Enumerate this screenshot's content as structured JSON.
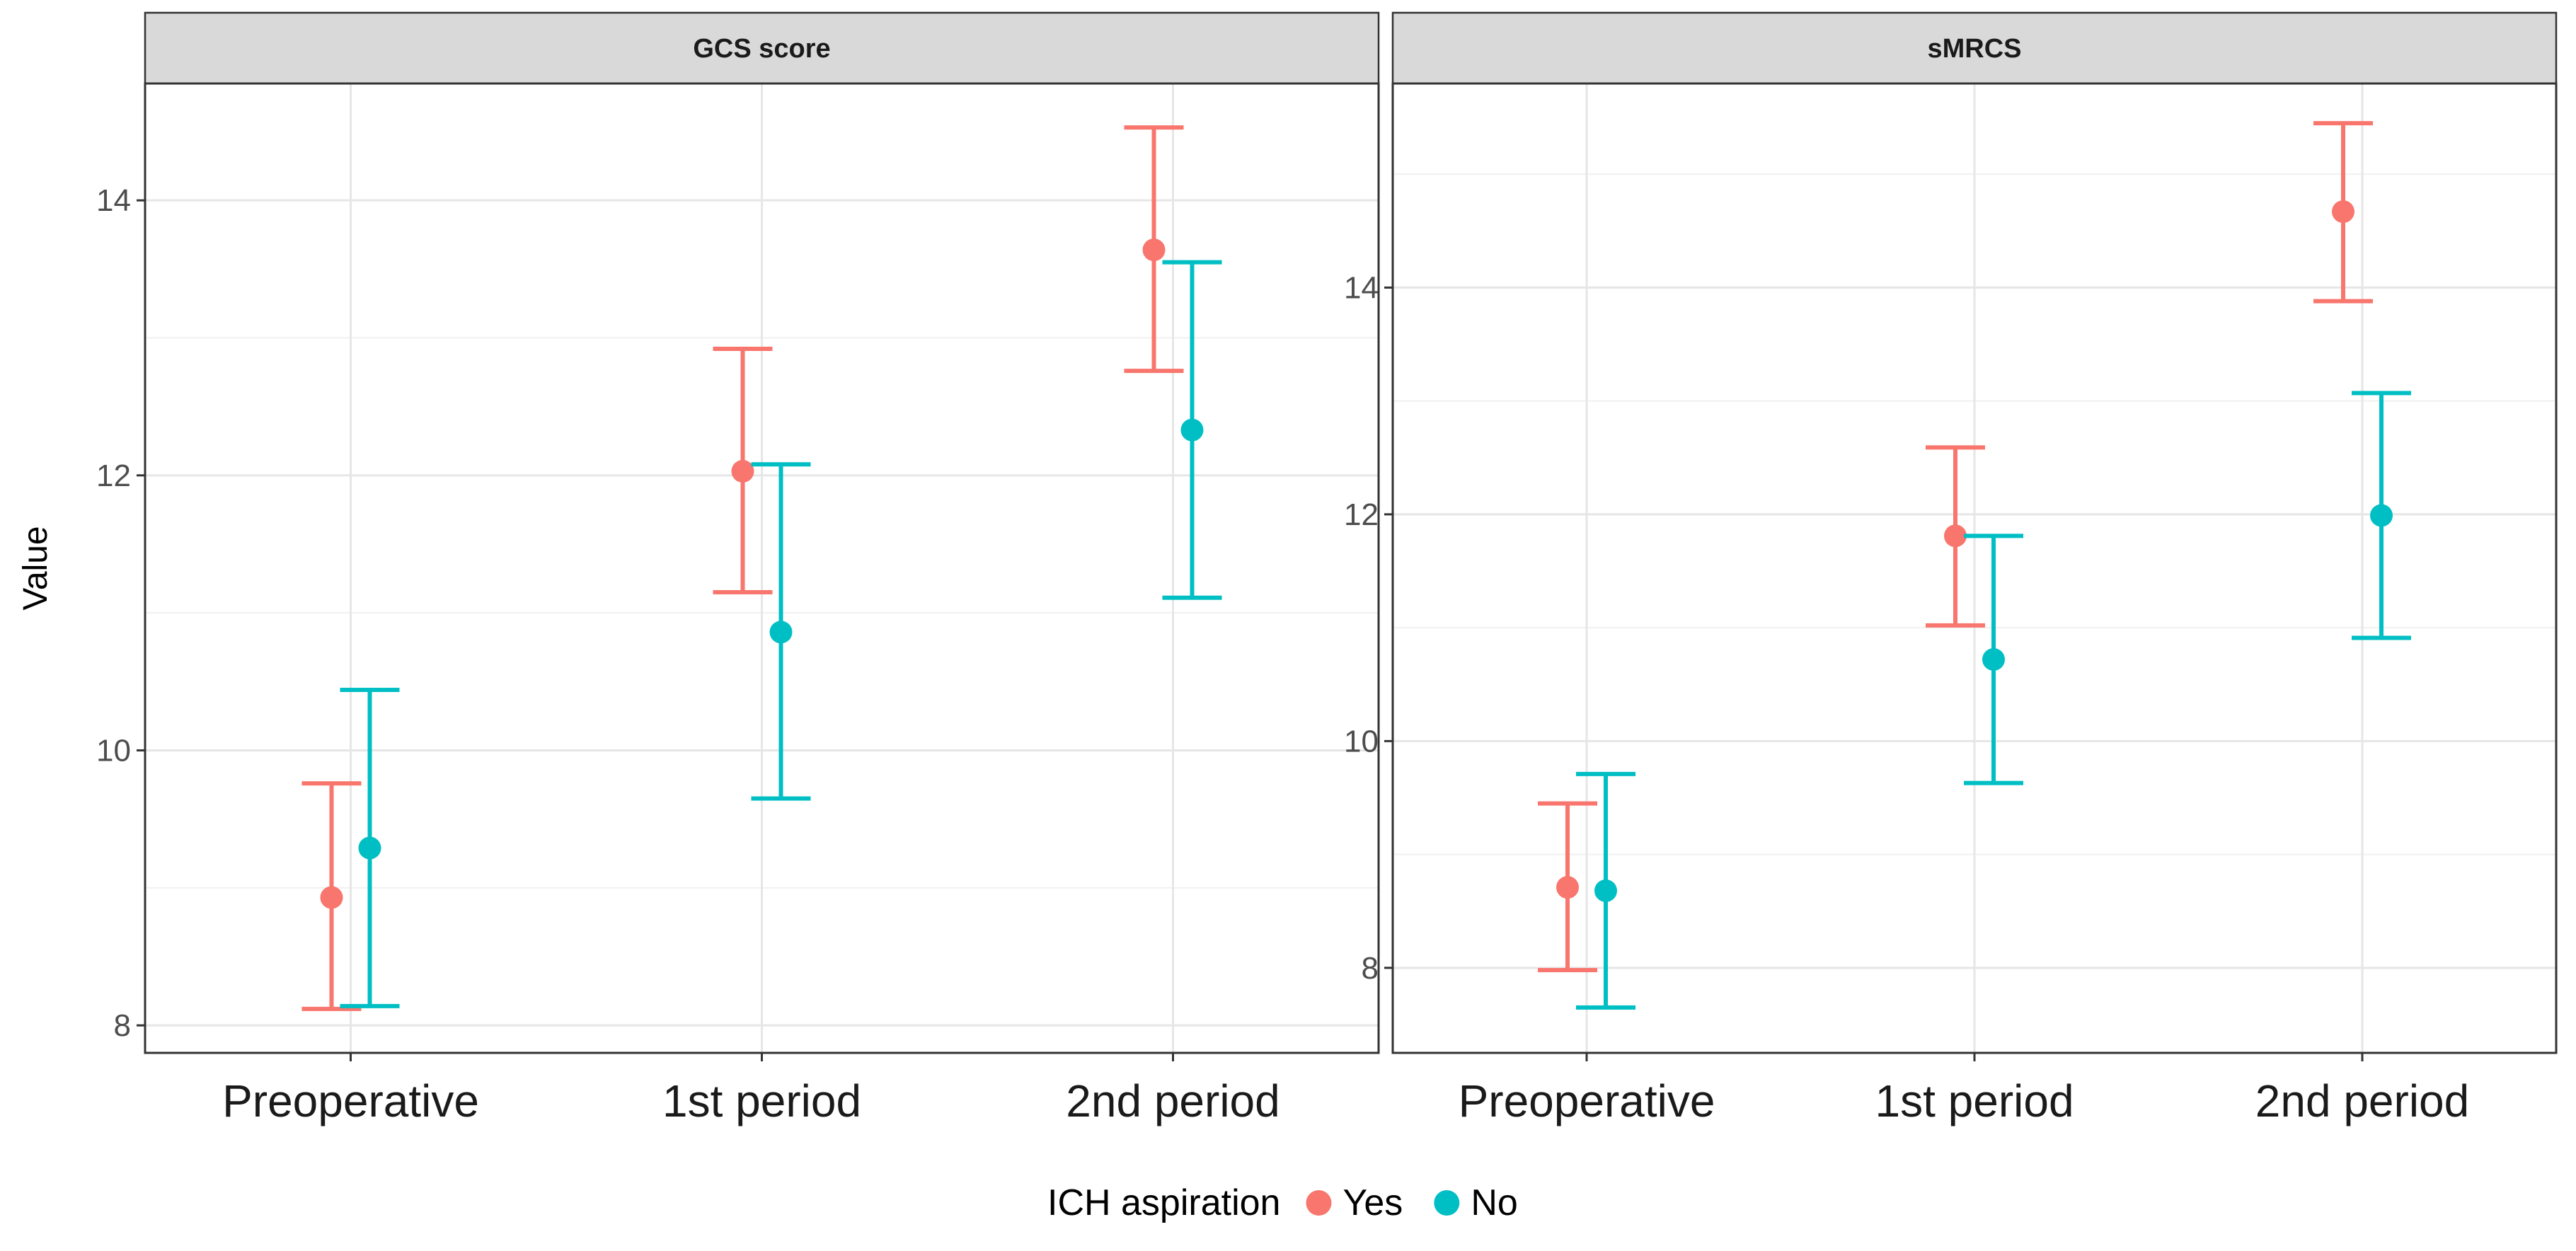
{
  "chart_data": {
    "type": "scatter",
    "subtype": "point-errorbar",
    "ylabel": "Value",
    "categories": [
      "Preoperative",
      "1st period",
      "2nd period"
    ],
    "legend": {
      "title": "ICH aspiration",
      "position": "bottom",
      "entries": [
        {
          "name": "Yes",
          "color": "#F8766D"
        },
        {
          "name": "No",
          "color": "#00BFC4"
        }
      ]
    },
    "panels": [
      {
        "title": "GCS score",
        "ylim": [
          7.8,
          14.85
        ],
        "yticks": [
          8,
          10,
          12,
          14
        ],
        "series": [
          {
            "name": "Yes",
            "color": "#F8766D",
            "mean": [
              8.93,
              12.03,
              13.64
            ],
            "lower": [
              8.12,
              11.15,
              12.76
            ],
            "upper": [
              9.76,
              12.92,
              14.53
            ]
          },
          {
            "name": "No",
            "color": "#00BFC4",
            "mean": [
              9.29,
              10.86,
              12.33
            ],
            "lower": [
              8.14,
              9.65,
              11.11
            ],
            "upper": [
              10.44,
              12.08,
              13.55
            ]
          }
        ]
      },
      {
        "title": "sMRCS",
        "ylim": [
          7.25,
          15.8
        ],
        "yticks": [
          8,
          10,
          12,
          14
        ],
        "series": [
          {
            "name": "Yes",
            "color": "#F8766D",
            "mean": [
              8.71,
              11.81,
              14.67
            ],
            "lower": [
              7.98,
              11.02,
              13.88
            ],
            "upper": [
              9.45,
              12.59,
              15.45
            ]
          },
          {
            "name": "No",
            "color": "#00BFC4",
            "mean": [
              8.68,
              10.72,
              11.99
            ],
            "lower": [
              7.65,
              9.63,
              10.91
            ],
            "upper": [
              9.71,
              11.81,
              13.07
            ]
          }
        ]
      }
    ]
  }
}
